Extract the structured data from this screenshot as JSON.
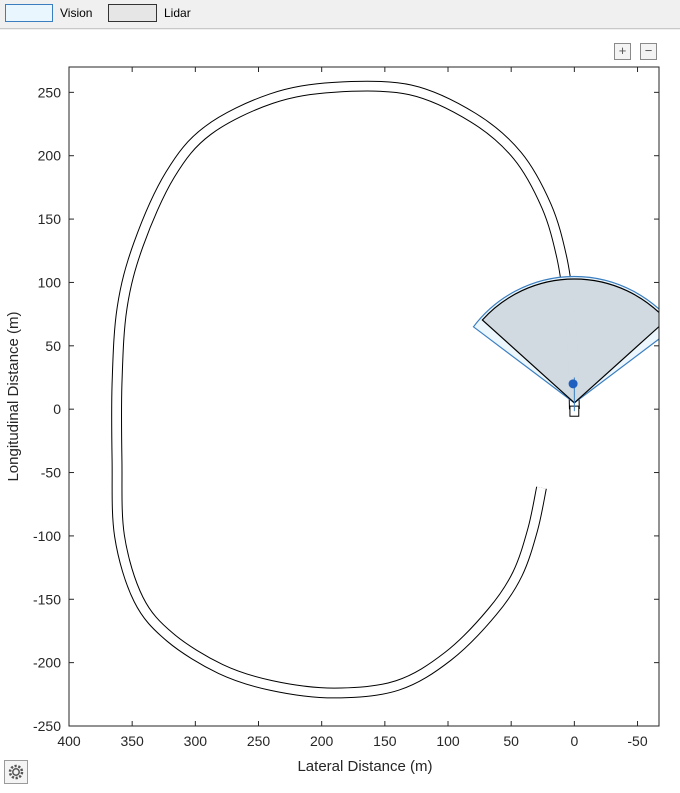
{
  "legend": {
    "items": [
      {
        "label": "Vision",
        "fill": "#eaf6fd",
        "stroke": "#3a7ec0"
      },
      {
        "label": "Lidar",
        "fill": "#e6e6e6",
        "stroke": "#333333"
      }
    ]
  },
  "toolbar": {
    "zoom_in_icon": "plus-icon",
    "zoom_out_icon": "minus-icon",
    "settings_icon": "gear-icon"
  },
  "chart_data": {
    "type": "line",
    "xlabel": "Lateral Distance (m)",
    "ylabel": "Longitudinal Distance (m)",
    "xlim": [
      400,
      -67
    ],
    "ylim": [
      -250,
      270
    ],
    "x_reversed": true,
    "xticks": [
      400,
      350,
      300,
      250,
      200,
      150,
      100,
      50,
      0,
      -50
    ],
    "yticks": [
      250,
      200,
      150,
      100,
      50,
      0,
      -50,
      -100,
      -150,
      -200,
      -250
    ],
    "road": {
      "name": "road-centerline",
      "x": [
        0,
        1,
        4,
        10,
        22,
        45,
        80,
        130,
        190,
        240,
        290,
        320,
        345,
        358,
        362,
        362,
        360,
        345,
        320,
        280,
        240,
        190,
        140,
        100,
        65,
        45,
        33,
        26
      ],
      "y": [
        0,
        40,
        80,
        120,
        160,
        200,
        230,
        252,
        254,
        245,
        220,
        185,
        130,
        80,
        20,
        -40,
        -100,
        -150,
        -180,
        -205,
        -218,
        -224,
        -218,
        -195,
        -160,
        -130,
        -95,
        -62
      ],
      "width_m": 7,
      "color": "#000000"
    },
    "ego_vehicle": {
      "x": 0,
      "y": 0,
      "length_m": 8,
      "width_m": 7,
      "color": "#ffffff"
    },
    "ego_marker": {
      "x": 1,
      "y": 20,
      "color": "#1f5fbf"
    },
    "sensors": [
      {
        "name": "Vision",
        "origin": [
          0,
          5
        ],
        "range": 100,
        "fov_deg": 106,
        "fill": "#eaf6fd",
        "stroke": "#3a7ec0"
      },
      {
        "name": "Lidar",
        "origin": [
          0,
          5
        ],
        "range": 98,
        "fov_deg": 96,
        "fill": "#cfd8de",
        "stroke": "#000000"
      }
    ]
  }
}
